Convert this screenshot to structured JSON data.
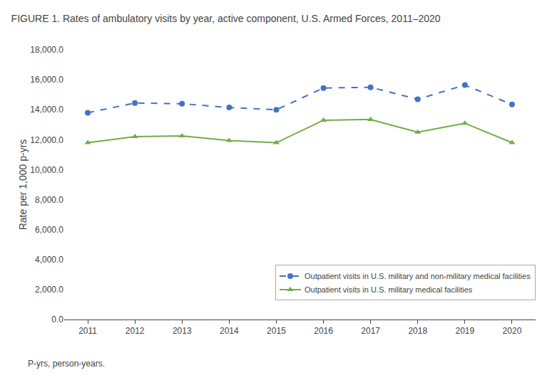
{
  "chart_data": {
    "type": "line",
    "title": "FIGURE 1. Rates of ambulatory visits by year, active component, U.S. Armed Forces, 2011–2020",
    "ylabel": "Rate per 1,000 p-yrs",
    "annotations": [
      "P-yrs, person-years."
    ],
    "x": [
      2011,
      2012,
      2013,
      2014,
      2015,
      2016,
      2017,
      2018,
      2019,
      2020
    ],
    "series": [
      {
        "name": "Outpatient visits in U.S. military and non-military medical facilities",
        "color": "#4472C4",
        "line_style": "dashed",
        "marker": "circle",
        "values": [
          13800,
          14450,
          14400,
          14150,
          14000,
          15450,
          15500,
          14700,
          15650,
          14350
        ]
      },
      {
        "name": "Outpatient visits in U.S. military medical facilities",
        "color": "#70AD47",
        "line_style": "solid",
        "marker": "triangle-up",
        "values": [
          11800,
          12200,
          12250,
          11950,
          11800,
          13300,
          13350,
          12500,
          13100,
          11800
        ]
      }
    ],
    "xlim": [
      2010.5,
      2020.5
    ],
    "xticks": [
      2011,
      2012,
      2013,
      2014,
      2015,
      2016,
      2017,
      2018,
      2019,
      2020
    ],
    "ylim": [
      0,
      18000
    ],
    "yticks": [
      {
        "value": 0,
        "label": "0.0"
      },
      {
        "value": 2000,
        "label": "2,000.0"
      },
      {
        "value": 4000,
        "label": "4,000.0"
      },
      {
        "value": 6000,
        "label": "6,000.0"
      },
      {
        "value": 8000,
        "label": "8,000.0"
      },
      {
        "value": 10000,
        "label": "10,000.0"
      },
      {
        "value": 12000,
        "label": "12,000.0"
      },
      {
        "value": 14000,
        "label": "14,000.0"
      },
      {
        "value": 16000,
        "label": "16,000.0"
      },
      {
        "value": 18000,
        "label": "18,000.0"
      }
    ],
    "grid": false,
    "legend": "lower right"
  }
}
